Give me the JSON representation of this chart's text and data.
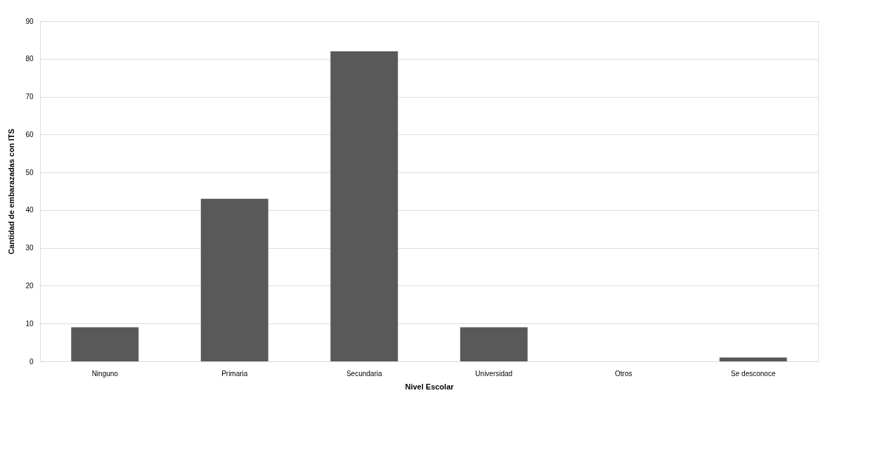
{
  "chart_data": {
    "type": "bar",
    "xlabel": "Nivel Escolar",
    "ylabel": "Cantidad de embarazadas con ITS",
    "categories": [
      "Ninguno",
      "Primaria",
      "Secundaria",
      "Universidad",
      "Otros",
      "Se desconoce"
    ],
    "values": [
      9,
      43,
      82,
      9,
      0,
      1
    ],
    "color": "#595959",
    "ylim": [
      0,
      90
    ],
    "yticks": [
      0,
      10,
      20,
      30,
      40,
      50,
      60,
      70,
      80,
      90
    ],
    "grid": "y",
    "legend": false
  }
}
